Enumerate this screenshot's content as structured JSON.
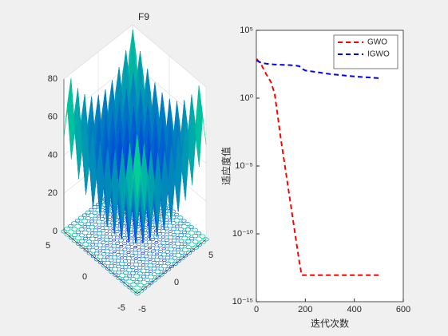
{
  "chart_data": [
    {
      "type": "surface",
      "title": "F9",
      "colormap": "winter",
      "grid": true,
      "x": [
        -5,
        -4.5,
        -4,
        -3.5,
        -3,
        -2.5,
        -2,
        -1.5,
        -1,
        -0.5,
        0,
        0.5,
        1,
        1.5,
        2,
        2.5,
        3,
        3.5,
        4,
        4.5,
        5
      ],
      "y": [
        -5,
        -4.5,
        -4,
        -3.5,
        -3,
        -2.5,
        -2,
        -1.5,
        -1,
        -0.5,
        0,
        0.5,
        1,
        1.5,
        2,
        2.5,
        3,
        3.5,
        4,
        4.5,
        5
      ],
      "z": [
        [
          50,
          65.25,
          41,
          57.25,
          34,
          51.25,
          29,
          47.25,
          26,
          45.25,
          25,
          45.25,
          26,
          47.25,
          29,
          51.25,
          34,
          57.25,
          41,
          65.25,
          50
        ],
        [
          65.25,
          80.5,
          56.25,
          72.5,
          49.25,
          66.5,
          44.25,
          62.5,
          41.25,
          60.5,
          40.25,
          60.5,
          41.25,
          62.5,
          44.25,
          66.5,
          49.25,
          72.5,
          56.25,
          80.5,
          65.25
        ],
        [
          41,
          56.25,
          32,
          48.25,
          25,
          42.25,
          20,
          38.25,
          17,
          36.25,
          16,
          36.25,
          17,
          38.25,
          20,
          42.25,
          25,
          48.25,
          32,
          56.25,
          41
        ],
        [
          57.25,
          72.5,
          48.25,
          64.5,
          41.25,
          58.5,
          36.25,
          54.5,
          33.25,
          52.5,
          32.25,
          52.5,
          33.25,
          54.5,
          36.25,
          58.5,
          41.25,
          64.5,
          48.25,
          72.5,
          57.25
        ],
        [
          34,
          49.25,
          25,
          41.25,
          18,
          35.25,
          13,
          31.25,
          10,
          29.25,
          9,
          29.25,
          10,
          31.25,
          13,
          35.25,
          18,
          41.25,
          25,
          49.25,
          34
        ],
        [
          51.25,
          66.5,
          42.25,
          58.5,
          35.25,
          52.5,
          30.25,
          48.5,
          27.25,
          46.5,
          26.25,
          46.5,
          27.25,
          48.5,
          30.25,
          52.5,
          35.25,
          58.5,
          42.25,
          66.5,
          51.25
        ],
        [
          29,
          44.25,
          20,
          36.25,
          13,
          30.25,
          8,
          26.25,
          5,
          24.25,
          4,
          24.25,
          5,
          26.25,
          8,
          30.25,
          13,
          36.25,
          20,
          44.25,
          29
        ],
        [
          47.25,
          62.5,
          38.25,
          54.5,
          31.25,
          48.5,
          26.25,
          44.5,
          23.25,
          42.5,
          22.25,
          42.5,
          23.25,
          44.5,
          26.25,
          48.5,
          31.25,
          54.5,
          38.25,
          62.5,
          47.25
        ],
        [
          26,
          41.25,
          17,
          33.25,
          10,
          27.25,
          5,
          23.25,
          2,
          21.25,
          1,
          21.25,
          2,
          23.25,
          5,
          27.25,
          10,
          33.25,
          17,
          41.25,
          26
        ],
        [
          45.25,
          60.5,
          36.25,
          52.5,
          29.25,
          46.5,
          24.25,
          42.5,
          21.25,
          40.5,
          20.25,
          40.5,
          21.25,
          42.5,
          24.25,
          46.5,
          29.25,
          52.5,
          36.25,
          60.5,
          45.25
        ],
        [
          25,
          40.25,
          16,
          32.25,
          9,
          26.25,
          4,
          22.25,
          1,
          20.25,
          0,
          20.25,
          1,
          22.25,
          4,
          26.25,
          9,
          32.25,
          16,
          40.25,
          25
        ],
        [
          45.25,
          60.5,
          36.25,
          52.5,
          29.25,
          46.5,
          24.25,
          42.5,
          21.25,
          40.5,
          20.25,
          40.5,
          21.25,
          42.5,
          24.25,
          46.5,
          29.25,
          52.5,
          36.25,
          60.5,
          45.25
        ],
        [
          26,
          41.25,
          17,
          33.25,
          10,
          27.25,
          5,
          23.25,
          2,
          21.25,
          1,
          21.25,
          2,
          23.25,
          5,
          27.25,
          10,
          33.25,
          17,
          41.25,
          26
        ],
        [
          47.25,
          62.5,
          38.25,
          54.5,
          31.25,
          48.5,
          26.25,
          44.5,
          23.25,
          42.5,
          22.25,
          42.5,
          23.25,
          44.5,
          26.25,
          48.5,
          31.25,
          54.5,
          38.25,
          62.5,
          47.25
        ],
        [
          29,
          44.25,
          20,
          36.25,
          13,
          30.25,
          8,
          26.25,
          5,
          24.25,
          4,
          24.25,
          5,
          26.25,
          8,
          30.25,
          13,
          36.25,
          20,
          44.25,
          29
        ],
        [
          51.25,
          66.5,
          42.25,
          58.5,
          35.25,
          52.5,
          30.25,
          48.5,
          27.25,
          46.5,
          26.25,
          46.5,
          27.25,
          48.5,
          30.25,
          52.5,
          35.25,
          58.5,
          42.25,
          66.5,
          51.25
        ],
        [
          34,
          49.25,
          25,
          41.25,
          18,
          35.25,
          13,
          31.25,
          10,
          29.25,
          9,
          29.25,
          10,
          31.25,
          13,
          35.25,
          18,
          41.25,
          25,
          49.25,
          34
        ],
        [
          57.25,
          72.5,
          48.25,
          64.5,
          41.25,
          58.5,
          36.25,
          54.5,
          33.25,
          52.5,
          32.25,
          52.5,
          33.25,
          54.5,
          36.25,
          58.5,
          41.25,
          64.5,
          48.25,
          72.5,
          57.25
        ],
        [
          41,
          56.25,
          32,
          48.25,
          25,
          42.25,
          20,
          38.25,
          17,
          36.25,
          16,
          36.25,
          17,
          38.25,
          20,
          42.25,
          25,
          48.25,
          32,
          56.25,
          41
        ],
        [
          65.25,
          80.5,
          56.25,
          72.5,
          49.25,
          66.5,
          44.25,
          62.5,
          41.25,
          60.5,
          40.25,
          60.5,
          41.25,
          62.5,
          44.25,
          66.5,
          49.25,
          72.5,
          56.25,
          80.5,
          65.25
        ],
        [
          50,
          65.25,
          41,
          57.25,
          34,
          51.25,
          29,
          47.25,
          26,
          45.25,
          25,
          45.25,
          26,
          47.25,
          29,
          51.25,
          34,
          57.25,
          41,
          65.25,
          50
        ]
      ],
      "xlim": [
        -5,
        5
      ],
      "ylim": [
        -5,
        5
      ],
      "zlim": [
        0,
        80
      ],
      "xticks": [
        -5,
        0,
        5
      ],
      "yticks": [
        -5,
        0,
        5
      ],
      "zticks": [
        0,
        20,
        40,
        60,
        80
      ]
    },
    {
      "type": "line",
      "yscale": "log",
      "legend": "northeast",
      "line_style": "dashed",
      "xlabel": "迭代次数",
      "ylabel": "适应度值",
      "x": [
        1,
        20,
        40,
        60,
        75,
        85,
        100,
        120,
        140,
        160,
        175,
        185,
        200,
        300,
        400,
        500
      ],
      "series": [
        {
          "name": "GWO",
          "color": "#ff0000",
          "values": [
            800,
            300,
            60,
            15,
            2,
            0.1,
            0.001,
            4e-06,
            1.6e-08,
            6e-11,
            1e-12,
            9e-14,
            9e-14,
            9e-14,
            9e-14,
            9e-14
          ]
        },
        {
          "name": "IGWO",
          "color": "#0000ff",
          "values": [
            600,
            400,
            350,
            320,
            300,
            300,
            290,
            280,
            270,
            250,
            230,
            150,
            110,
            60,
            40,
            30
          ]
        }
      ],
      "xlim": [
        0,
        600
      ],
      "xticks": [
        0,
        200,
        400,
        600
      ],
      "ylim": [
        1e-15,
        100000
      ],
      "yticks": [
        {
          "value": 1e-15,
          "label": "10⁻¹⁵"
        },
        {
          "value": 1e-10,
          "label": "10⁻¹⁰"
        },
        {
          "value": 1e-05,
          "label": "10⁻⁵"
        },
        {
          "value": 1,
          "label": "10⁰"
        },
        {
          "value": 100000,
          "label": "10⁵"
        }
      ]
    }
  ]
}
